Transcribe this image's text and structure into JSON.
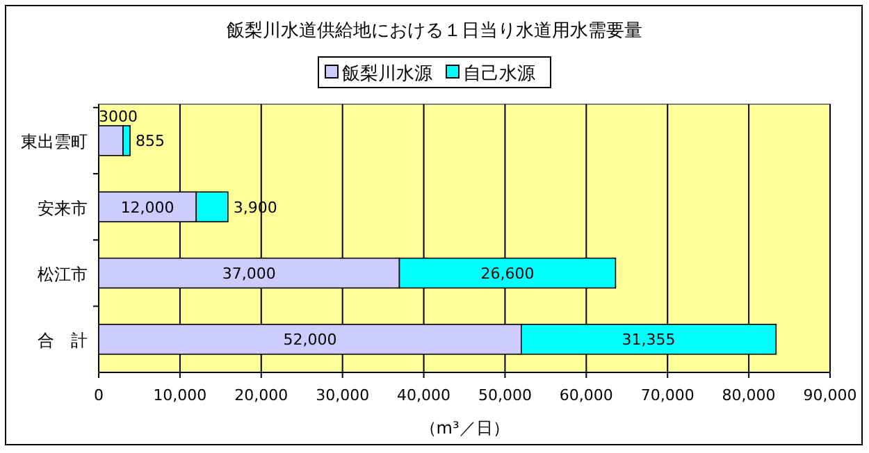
{
  "chart_data": {
    "type": "bar",
    "orientation": "horizontal",
    "stacked": true,
    "title": "飯梨川水道供給地における１日当り水道用水需要量",
    "xlabel": "（m³／日）",
    "categories": [
      "東出雲町",
      "安来市",
      "松江市",
      "合　計"
    ],
    "series": [
      {
        "name": "飯梨川水源",
        "color": "#ccccff",
        "values": [
          3000,
          12000,
          37000,
          52000
        ],
        "value_labels": [
          "3000",
          "12,000",
          "37,000",
          "52,000"
        ]
      },
      {
        "name": "自己水源",
        "color": "#00ffff",
        "values": [
          855,
          3900,
          26600,
          31355
        ],
        "value_labels": [
          "855",
          "3,900",
          "26,600",
          "31,355"
        ]
      }
    ],
    "xlim": [
      0,
      90000
    ],
    "xticks": [
      0,
      {
        "value": 10000,
        "label": "10,000"
      },
      {
        "value": 20000,
        "label": "20,000"
      },
      {
        "value": 30000,
        "label": "30,000"
      },
      {
        "value": 40000,
        "label": "40,000"
      },
      {
        "value": 50000,
        "label": "50,000"
      },
      {
        "value": 60000,
        "label": "60,000"
      },
      {
        "value": 70000,
        "label": "70,000"
      },
      {
        "value": 80000,
        "label": "80,000"
      },
      {
        "value": 90000,
        "label": "90,000"
      }
    ],
    "grid": "x",
    "legend": "top"
  }
}
